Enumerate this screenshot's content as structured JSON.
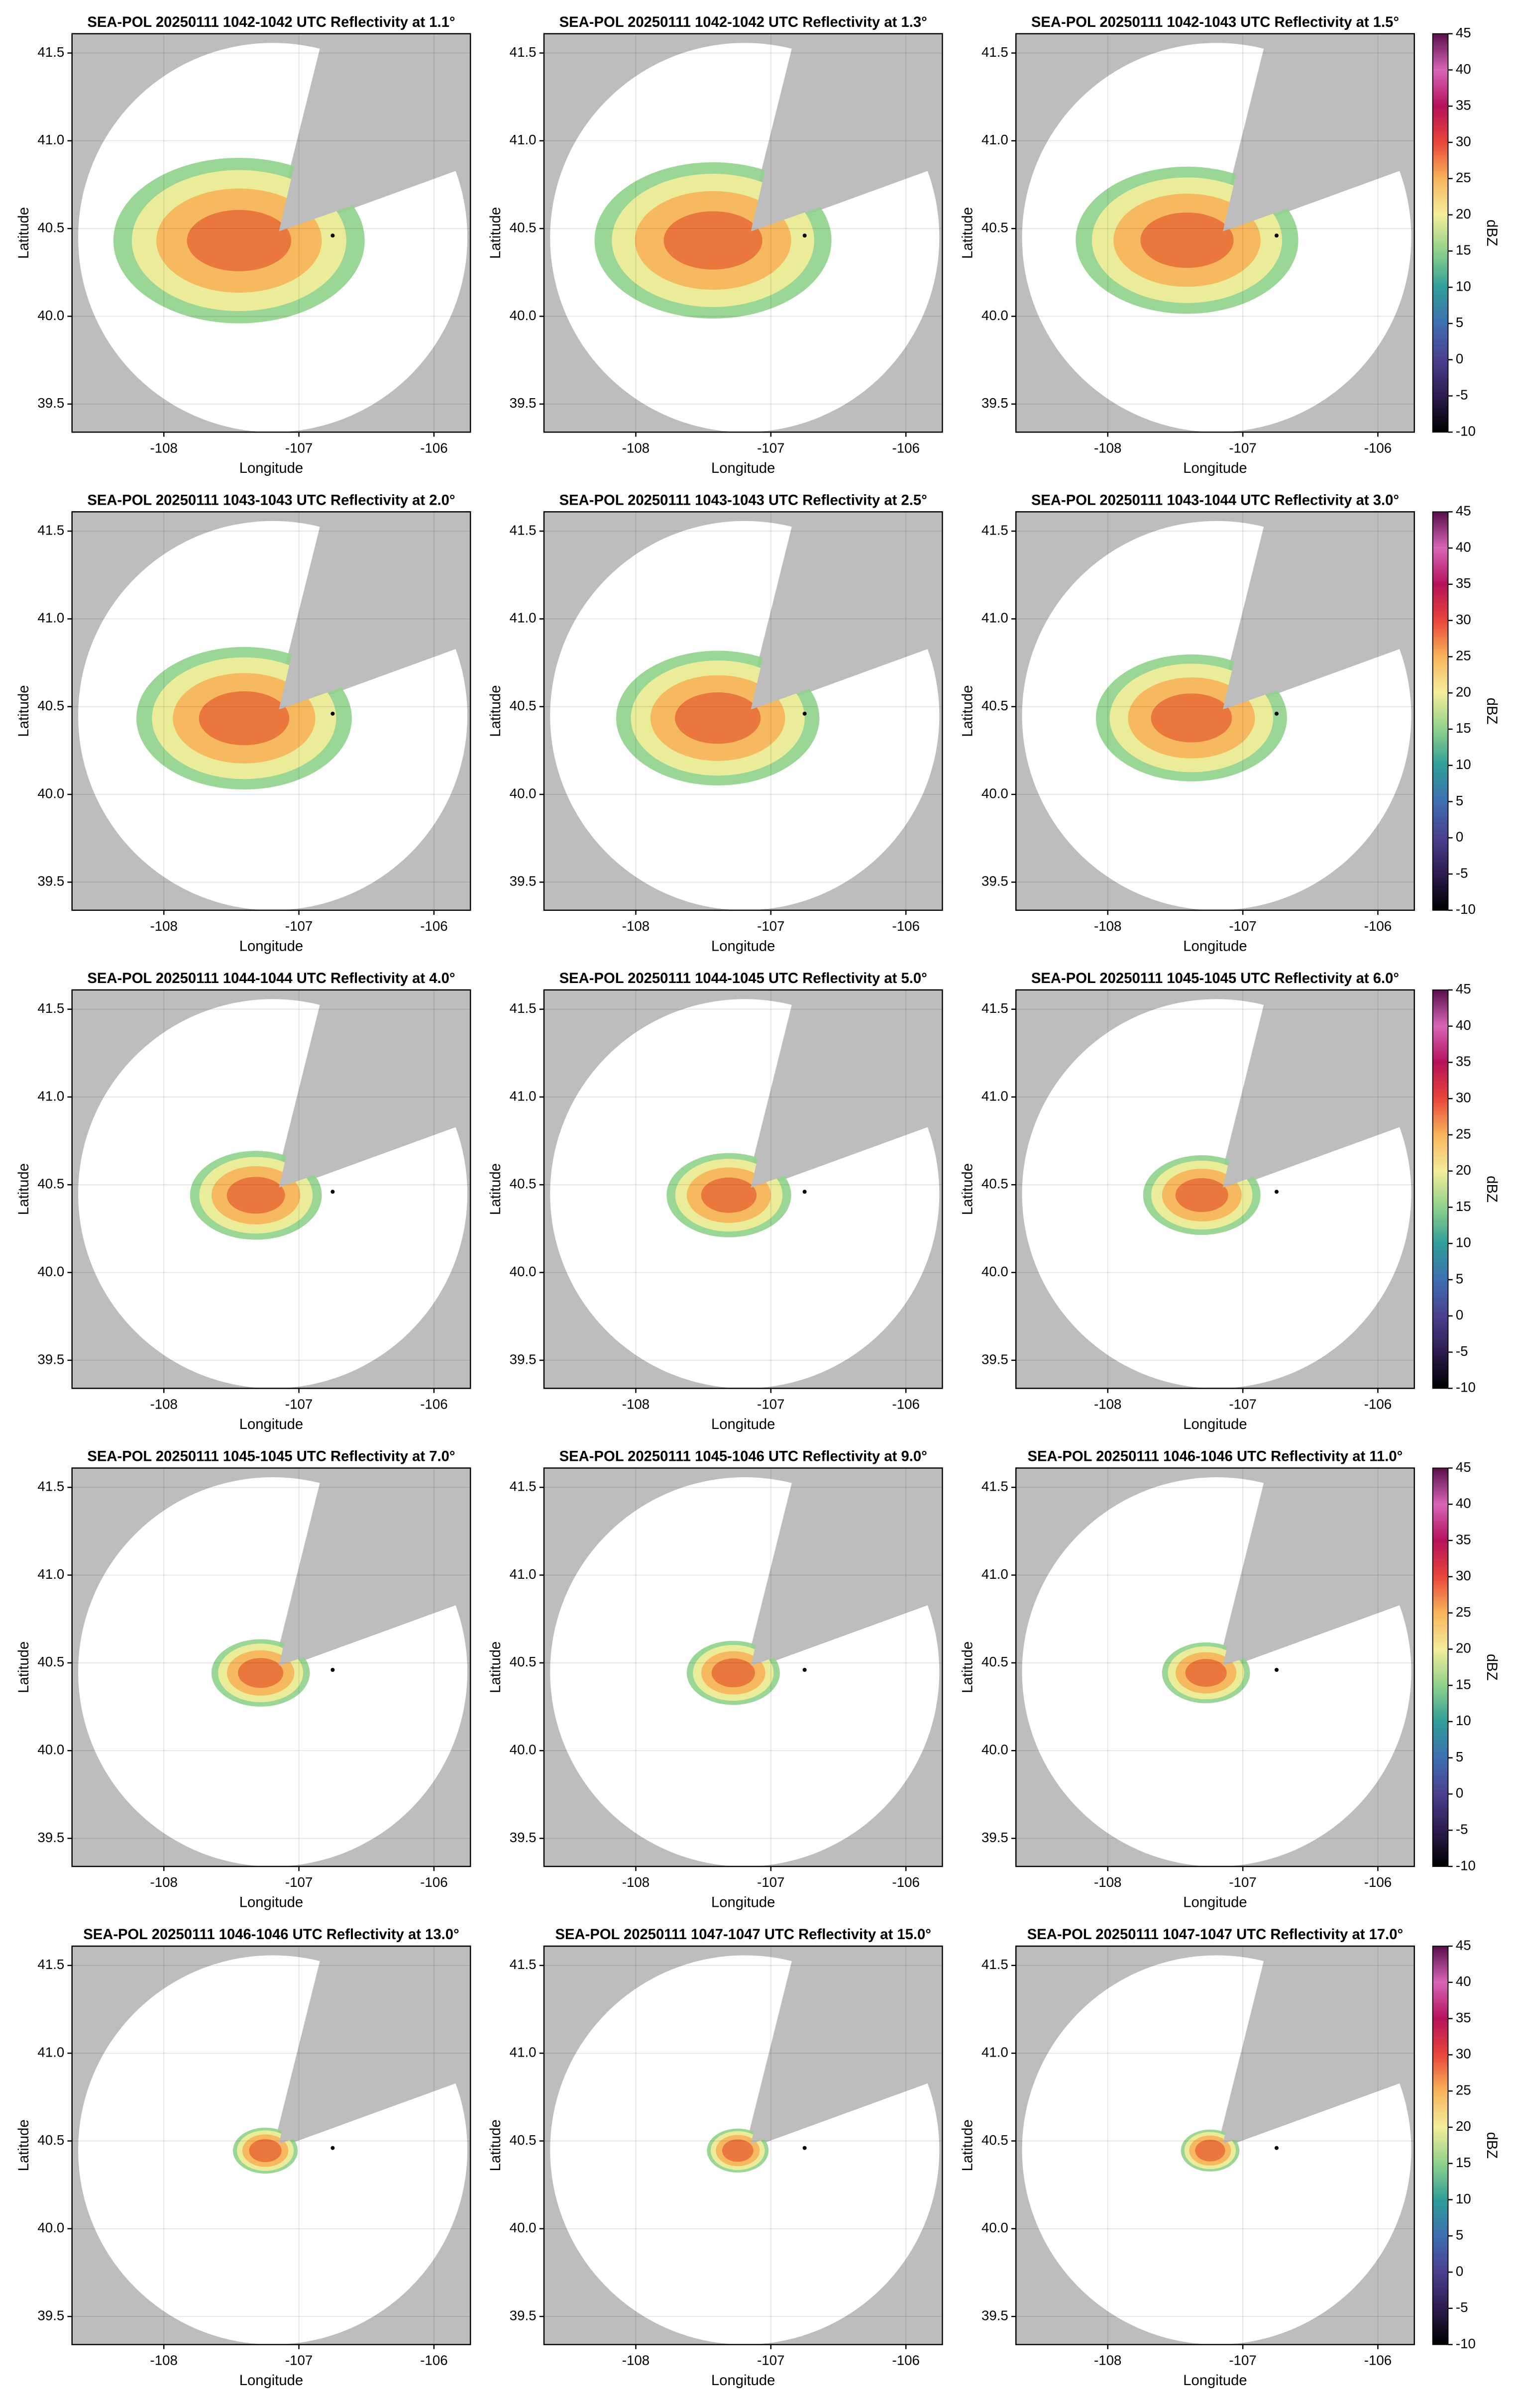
{
  "chart_data": [
    {
      "type": "ppi",
      "title": "SEA-POL 20250111 1042-1042 UTC Reflectivity at 1.1°",
      "xlabel": "Longitude",
      "ylabel": "Latitude",
      "xlim": [
        -108.68,
        -105.73
      ],
      "ylim": [
        39.34,
        41.61
      ],
      "xticks": [
        -108,
        -107,
        -106
      ],
      "yticks": [
        39.5,
        {
          "value": 40,
          "label": "40.0"
        },
        40.5,
        {
          "value": 41,
          "label": "41.0"
        },
        41.5
      ],
      "grid": true,
      "marker": {
        "x": -106.75,
        "y": 40.46
      }
    },
    {
      "type": "ppi",
      "title": "SEA-POL 20250111 1042-1042 UTC Reflectivity at 1.3°",
      "xlabel": "Longitude",
      "ylabel": "Latitude",
      "xlim": [
        -108.68,
        -105.73
      ],
      "ylim": [
        39.34,
        41.61
      ],
      "xticks": [
        -108,
        -107,
        -106
      ],
      "yticks": [
        39.5,
        {
          "value": 40,
          "label": "40.0"
        },
        40.5,
        {
          "value": 41,
          "label": "41.0"
        },
        41.5
      ],
      "grid": true,
      "marker": {
        "x": -106.75,
        "y": 40.46
      }
    },
    {
      "type": "ppi",
      "title": "SEA-POL 20250111 1042-1043 UTC Reflectivity at 1.5°",
      "xlabel": "Longitude",
      "ylabel": "Latitude",
      "xlim": [
        -108.68,
        -105.73
      ],
      "ylim": [
        39.34,
        41.61
      ],
      "xticks": [
        -108,
        -107,
        -106
      ],
      "yticks": [
        39.5,
        {
          "value": 40,
          "label": "40.0"
        },
        40.5,
        {
          "value": 41,
          "label": "41.0"
        },
        41.5
      ],
      "grid": true,
      "marker": {
        "x": -106.75,
        "y": 40.46
      },
      "colorbar": {
        "label": "dBZ",
        "lim": [
          -10,
          45
        ],
        "ticks": [
          -10,
          -5,
          0,
          5,
          10,
          15,
          20,
          25,
          30,
          35,
          40,
          45
        ],
        "colormap": [
          "#000000",
          "#2d1b4e",
          "#4b3f8f",
          "#3e6fb0",
          "#2f9e9a",
          "#8fd18a",
          "#f4ee9a",
          "#f8b45a",
          "#e8463a",
          "#b5125a",
          "#d865b8",
          "#5a0f4a"
        ]
      }
    },
    {
      "type": "ppi",
      "title": "SEA-POL 20250111 1043-1043 UTC Reflectivity at 2.0°",
      "xlabel": "Longitude",
      "ylabel": "Latitude",
      "xlim": [
        -108.68,
        -105.73
      ],
      "ylim": [
        39.34,
        41.61
      ],
      "xticks": [
        -108,
        -107,
        -106
      ],
      "yticks": [
        39.5,
        {
          "value": 40,
          "label": "40.0"
        },
        40.5,
        {
          "value": 41,
          "label": "41.0"
        },
        41.5
      ],
      "grid": true,
      "marker": {
        "x": -106.75,
        "y": 40.46
      }
    },
    {
      "type": "ppi",
      "title": "SEA-POL 20250111 1043-1043 UTC Reflectivity at 2.5°",
      "xlabel": "Longitude",
      "ylabel": "Latitude",
      "xlim": [
        -108.68,
        -105.73
      ],
      "ylim": [
        39.34,
        41.61
      ],
      "xticks": [
        -108,
        -107,
        -106
      ],
      "yticks": [
        39.5,
        {
          "value": 40,
          "label": "40.0"
        },
        40.5,
        {
          "value": 41,
          "label": "41.0"
        },
        41.5
      ],
      "grid": true,
      "marker": {
        "x": -106.75,
        "y": 40.46
      }
    },
    {
      "type": "ppi",
      "title": "SEA-POL 20250111 1043-1044 UTC Reflectivity at 3.0°",
      "xlabel": "Longitude",
      "ylabel": "Latitude",
      "xlim": [
        -108.68,
        -105.73
      ],
      "ylim": [
        39.34,
        41.61
      ],
      "xticks": [
        -108,
        -107,
        -106
      ],
      "yticks": [
        39.5,
        {
          "value": 40,
          "label": "40.0"
        },
        40.5,
        {
          "value": 41,
          "label": "41.0"
        },
        41.5
      ],
      "grid": true,
      "marker": {
        "x": -106.75,
        "y": 40.46
      },
      "colorbar": {
        "label": "dBZ",
        "lim": [
          -10,
          45
        ],
        "ticks": [
          -10,
          -5,
          0,
          5,
          10,
          15,
          20,
          25,
          30,
          35,
          40,
          45
        ],
        "colormap": [
          "#000000",
          "#2d1b4e",
          "#4b3f8f",
          "#3e6fb0",
          "#2f9e9a",
          "#8fd18a",
          "#f4ee9a",
          "#f8b45a",
          "#e8463a",
          "#b5125a",
          "#d865b8",
          "#5a0f4a"
        ]
      }
    },
    {
      "type": "ppi",
      "title": "SEA-POL 20250111 1044-1044 UTC Reflectivity at 4.0°",
      "xlabel": "Longitude",
      "ylabel": "Latitude",
      "xlim": [
        -108.68,
        -105.73
      ],
      "ylim": [
        39.34,
        41.61
      ],
      "xticks": [
        -108,
        -107,
        -106
      ],
      "yticks": [
        39.5,
        {
          "value": 40,
          "label": "40.0"
        },
        40.5,
        {
          "value": 41,
          "label": "41.0"
        },
        41.5
      ],
      "grid": true,
      "marker": {
        "x": -106.75,
        "y": 40.46
      }
    },
    {
      "type": "ppi",
      "title": "SEA-POL 20250111 1044-1045 UTC Reflectivity at 5.0°",
      "xlabel": "Longitude",
      "ylabel": "Latitude",
      "xlim": [
        -108.68,
        -105.73
      ],
      "ylim": [
        39.34,
        41.61
      ],
      "xticks": [
        -108,
        -107,
        -106
      ],
      "yticks": [
        39.5,
        {
          "value": 40,
          "label": "40.0"
        },
        40.5,
        {
          "value": 41,
          "label": "41.0"
        },
        41.5
      ],
      "grid": true,
      "marker": {
        "x": -106.75,
        "y": 40.46
      }
    },
    {
      "type": "ppi",
      "title": "SEA-POL 20250111 1045-1045 UTC Reflectivity at 6.0°",
      "xlabel": "Longitude",
      "ylabel": "Latitude",
      "xlim": [
        -108.68,
        -105.73
      ],
      "ylim": [
        39.34,
        41.61
      ],
      "xticks": [
        -108,
        -107,
        -106
      ],
      "yticks": [
        39.5,
        {
          "value": 40,
          "label": "40.0"
        },
        40.5,
        {
          "value": 41,
          "label": "41.0"
        },
        41.5
      ],
      "grid": true,
      "marker": {
        "x": -106.75,
        "y": 40.46
      },
      "colorbar": {
        "label": "dBZ",
        "lim": [
          -10,
          45
        ],
        "ticks": [
          -10,
          -5,
          0,
          5,
          10,
          15,
          20,
          25,
          30,
          35,
          40,
          45
        ],
        "colormap": [
          "#000000",
          "#2d1b4e",
          "#4b3f8f",
          "#3e6fb0",
          "#2f9e9a",
          "#8fd18a",
          "#f4ee9a",
          "#f8b45a",
          "#e8463a",
          "#b5125a",
          "#d865b8",
          "#5a0f4a"
        ]
      }
    },
    {
      "type": "ppi",
      "title": "SEA-POL 20250111 1045-1045 UTC Reflectivity at 7.0°",
      "xlabel": "Longitude",
      "ylabel": "Latitude",
      "xlim": [
        -108.68,
        -105.73
      ],
      "ylim": [
        39.34,
        41.61
      ],
      "xticks": [
        -108,
        -107,
        -106
      ],
      "yticks": [
        39.5,
        {
          "value": 40,
          "label": "40.0"
        },
        40.5,
        {
          "value": 41,
          "label": "41.0"
        },
        41.5
      ],
      "grid": true,
      "marker": {
        "x": -106.75,
        "y": 40.46
      }
    },
    {
      "type": "ppi",
      "title": "SEA-POL 20250111 1045-1046 UTC Reflectivity at 9.0°",
      "xlabel": "Longitude",
      "ylabel": "Latitude",
      "xlim": [
        -108.68,
        -105.73
      ],
      "ylim": [
        39.34,
        41.61
      ],
      "xticks": [
        -108,
        -107,
        -106
      ],
      "yticks": [
        39.5,
        {
          "value": 40,
          "label": "40.0"
        },
        40.5,
        {
          "value": 41,
          "label": "41.0"
        },
        41.5
      ],
      "grid": true,
      "marker": {
        "x": -106.75,
        "y": 40.46
      }
    },
    {
      "type": "ppi",
      "title": "SEA-POL 20250111 1046-1046 UTC Reflectivity at 11.0°",
      "xlabel": "Longitude",
      "ylabel": "Latitude",
      "xlim": [
        -108.68,
        -105.73
      ],
      "ylim": [
        39.34,
        41.61
      ],
      "xticks": [
        -108,
        -107,
        -106
      ],
      "yticks": [
        39.5,
        {
          "value": 40,
          "label": "40.0"
        },
        40.5,
        {
          "value": 41,
          "label": "41.0"
        },
        41.5
      ],
      "grid": true,
      "marker": {
        "x": -106.75,
        "y": 40.46
      },
      "colorbar": {
        "label": "dBZ",
        "lim": [
          -10,
          45
        ],
        "ticks": [
          -10,
          -5,
          0,
          5,
          10,
          15,
          20,
          25,
          30,
          35,
          40,
          45
        ],
        "colormap": [
          "#000000",
          "#2d1b4e",
          "#4b3f8f",
          "#3e6fb0",
          "#2f9e9a",
          "#8fd18a",
          "#f4ee9a",
          "#f8b45a",
          "#e8463a",
          "#b5125a",
          "#d865b8",
          "#5a0f4a"
        ]
      }
    },
    {
      "type": "ppi",
      "title": "SEA-POL 20250111 1046-1046 UTC Reflectivity at 13.0°",
      "xlabel": "Longitude",
      "ylabel": "Latitude",
      "xlim": [
        -108.68,
        -105.73
      ],
      "ylim": [
        39.34,
        41.61
      ],
      "xticks": [
        -108,
        -107,
        -106
      ],
      "yticks": [
        39.5,
        {
          "value": 40,
          "label": "40.0"
        },
        40.5,
        {
          "value": 41,
          "label": "41.0"
        },
        41.5
      ],
      "grid": true,
      "marker": {
        "x": -106.75,
        "y": 40.46
      }
    },
    {
      "type": "ppi",
      "title": "SEA-POL 20250111 1047-1047 UTC Reflectivity at 15.0°",
      "xlabel": "Longitude",
      "ylabel": "Latitude",
      "xlim": [
        -108.68,
        -105.73
      ],
      "ylim": [
        39.34,
        41.61
      ],
      "xticks": [
        -108,
        -107,
        -106
      ],
      "yticks": [
        39.5,
        {
          "value": 40,
          "label": "40.0"
        },
        40.5,
        {
          "value": 41,
          "label": "41.0"
        },
        41.5
      ],
      "grid": true,
      "marker": {
        "x": -106.75,
        "y": 40.46
      }
    },
    {
      "type": "ppi",
      "title": "SEA-POL 20250111 1047-1047 UTC Reflectivity at 17.0°",
      "xlabel": "Longitude",
      "ylabel": "Latitude",
      "xlim": [
        -108.68,
        -105.73
      ],
      "ylim": [
        39.34,
        41.61
      ],
      "xticks": [
        -108,
        -107,
        -106
      ],
      "yticks": [
        39.5,
        {
          "value": 40,
          "label": "40.0"
        },
        40.5,
        {
          "value": 41,
          "label": "41.0"
        },
        41.5
      ],
      "grid": true,
      "marker": {
        "x": -106.75,
        "y": 40.46
      },
      "colorbar": {
        "label": "dBZ",
        "lim": [
          -10,
          45
        ],
        "ticks": [
          -10,
          -5,
          0,
          5,
          10,
          15,
          20,
          25,
          30,
          35,
          40,
          45
        ],
        "colormap": [
          "#000000",
          "#2d1b4e",
          "#4b3f8f",
          "#3e6fb0",
          "#2f9e9a",
          "#8fd18a",
          "#f4ee9a",
          "#f8b45a",
          "#e8463a",
          "#b5125a",
          "#d865b8",
          "#5a0f4a"
        ]
      }
    }
  ]
}
